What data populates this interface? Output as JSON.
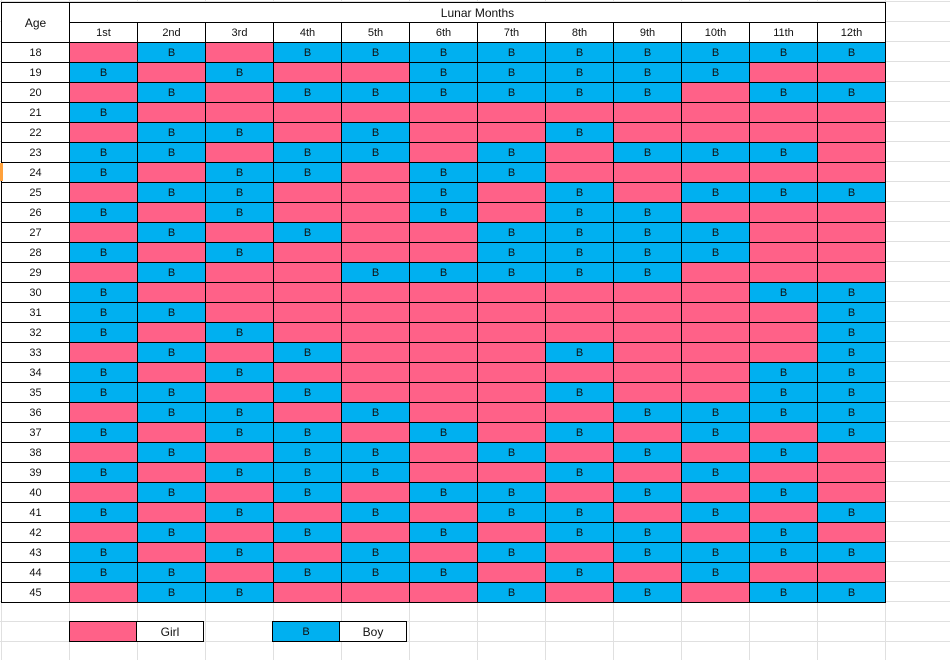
{
  "table": {
    "title": "Lunar Months",
    "age_label": "Age"
  },
  "legend": {
    "girl_label": "Girl",
    "boy_label": "Boy",
    "boy_symbol": "B"
  },
  "colors": {
    "girl": "#ff6188",
    "boy": "#00b0f0",
    "marker": "#ffa13b",
    "grid_border": "#000000",
    "excel_gridline": "#e0e0e0"
  },
  "chart_data": {
    "type": "heatmap",
    "title": "Lunar Months",
    "row_axis_label": "Age",
    "boy_symbol": "B",
    "value_legend": {
      "B": "Boy",
      "G": "Girl"
    },
    "columns": [
      "1st",
      "2nd",
      "3rd",
      "4th",
      "5th",
      "6th",
      "7th",
      "8th",
      "9th",
      "10th",
      "11th",
      "12th"
    ],
    "rows": [
      18,
      19,
      20,
      21,
      22,
      23,
      24,
      25,
      26,
      27,
      28,
      29,
      30,
      31,
      32,
      33,
      34,
      35,
      36,
      37,
      38,
      39,
      40,
      41,
      42,
      43,
      44,
      45
    ],
    "values": [
      [
        "G",
        "B",
        "G",
        "B",
        "B",
        "B",
        "B",
        "B",
        "B",
        "B",
        "B",
        "B"
      ],
      [
        "B",
        "G",
        "B",
        "G",
        "G",
        "B",
        "B",
        "B",
        "B",
        "B",
        "G",
        "G"
      ],
      [
        "G",
        "B",
        "G",
        "B",
        "B",
        "B",
        "B",
        "B",
        "B",
        "G",
        "B",
        "B"
      ],
      [
        "B",
        "G",
        "G",
        "G",
        "G",
        "G",
        "G",
        "G",
        "G",
        "G",
        "G",
        "G"
      ],
      [
        "G",
        "B",
        "B",
        "G",
        "B",
        "G",
        "G",
        "B",
        "G",
        "G",
        "G",
        "G"
      ],
      [
        "B",
        "B",
        "G",
        "B",
        "B",
        "G",
        "B",
        "G",
        "B",
        "B",
        "B",
        "G"
      ],
      [
        "B",
        "G",
        "B",
        "B",
        "G",
        "B",
        "B",
        "G",
        "G",
        "G",
        "G",
        "G"
      ],
      [
        "G",
        "B",
        "B",
        "G",
        "G",
        "B",
        "G",
        "B",
        "G",
        "B",
        "B",
        "B"
      ],
      [
        "B",
        "G",
        "B",
        "G",
        "G",
        "B",
        "G",
        "B",
        "B",
        "G",
        "G",
        "G"
      ],
      [
        "G",
        "B",
        "G",
        "B",
        "G",
        "G",
        "B",
        "B",
        "B",
        "B",
        "G",
        "G"
      ],
      [
        "B",
        "G",
        "B",
        "G",
        "G",
        "G",
        "B",
        "B",
        "B",
        "B",
        "G",
        "G"
      ],
      [
        "G",
        "B",
        "G",
        "G",
        "B",
        "B",
        "B",
        "B",
        "B",
        "G",
        "G",
        "G"
      ],
      [
        "B",
        "G",
        "G",
        "G",
        "G",
        "G",
        "G",
        "G",
        "G",
        "G",
        "B",
        "B"
      ],
      [
        "B",
        "B",
        "G",
        "G",
        "G",
        "G",
        "G",
        "G",
        "G",
        "G",
        "G",
        "B"
      ],
      [
        "B",
        "G",
        "B",
        "G",
        "G",
        "G",
        "G",
        "G",
        "G",
        "G",
        "G",
        "B"
      ],
      [
        "G",
        "B",
        "G",
        "B",
        "G",
        "G",
        "G",
        "B",
        "G",
        "G",
        "G",
        "B"
      ],
      [
        "B",
        "G",
        "B",
        "G",
        "G",
        "G",
        "G",
        "G",
        "G",
        "G",
        "B",
        "B"
      ],
      [
        "B",
        "B",
        "G",
        "B",
        "G",
        "G",
        "G",
        "B",
        "G",
        "G",
        "B",
        "B"
      ],
      [
        "G",
        "B",
        "B",
        "G",
        "B",
        "G",
        "G",
        "G",
        "B",
        "B",
        "B",
        "B"
      ],
      [
        "B",
        "G",
        "B",
        "B",
        "G",
        "B",
        "G",
        "B",
        "G",
        "B",
        "G",
        "B"
      ],
      [
        "G",
        "B",
        "G",
        "B",
        "B",
        "G",
        "B",
        "G",
        "B",
        "G",
        "B",
        "G"
      ],
      [
        "B",
        "G",
        "B",
        "B",
        "B",
        "G",
        "G",
        "B",
        "G",
        "B",
        "G",
        "G"
      ],
      [
        "G",
        "B",
        "G",
        "B",
        "G",
        "B",
        "B",
        "G",
        "B",
        "G",
        "B",
        "G"
      ],
      [
        "B",
        "G",
        "B",
        "G",
        "B",
        "G",
        "B",
        "B",
        "G",
        "B",
        "G",
        "B"
      ],
      [
        "G",
        "B",
        "G",
        "B",
        "G",
        "B",
        "G",
        "B",
        "B",
        "G",
        "B",
        "G"
      ],
      [
        "B",
        "G",
        "B",
        "G",
        "B",
        "G",
        "B",
        "G",
        "B",
        "B",
        "B",
        "B"
      ],
      [
        "B",
        "B",
        "G",
        "B",
        "B",
        "B",
        "G",
        "B",
        "G",
        "B",
        "G",
        "G"
      ],
      [
        "G",
        "B",
        "B",
        "G",
        "G",
        "G",
        "B",
        "G",
        "B",
        "G",
        "B",
        "B"
      ]
    ]
  }
}
